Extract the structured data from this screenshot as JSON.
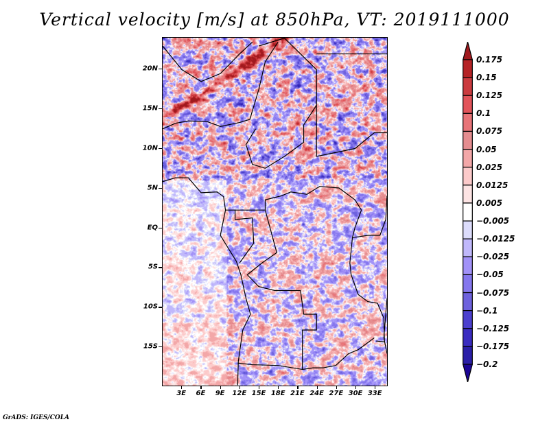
{
  "title": "Vertical velocity [m/s] at 850hPa, VT: 2019111000",
  "footer": "GrADS: IGES/COLA",
  "map": {
    "variable": "Vertical velocity",
    "units": "m/s",
    "level": "850hPa",
    "valid_time": "2019111000",
    "lon_range": [
      0,
      35
    ],
    "lat_range": [
      -20,
      24
    ],
    "y_axis_labels": [
      {
        "label": "20N",
        "lat": 20
      },
      {
        "label": "15N",
        "lat": 15
      },
      {
        "label": "10N",
        "lat": 10
      },
      {
        "label": "5N",
        "lat": 5
      },
      {
        "label": "EQ",
        "lat": 0
      },
      {
        "label": "5S",
        "lat": -5
      },
      {
        "label": "10S",
        "lat": -10
      },
      {
        "label": "15S",
        "lat": -15
      }
    ],
    "x_axis_labels": [
      {
        "label": "3E",
        "lon": 3
      },
      {
        "label": "6E",
        "lon": 6
      },
      {
        "label": "9E",
        "lon": 9
      },
      {
        "label": "12E",
        "lon": 12
      },
      {
        "label": "15E",
        "lon": 15
      },
      {
        "label": "18E",
        "lon": 18
      },
      {
        "label": "21E",
        "lon": 21
      },
      {
        "label": "24E",
        "lon": 24
      },
      {
        "label": "27E",
        "lon": 27
      },
      {
        "label": "30E",
        "lon": 30
      },
      {
        "label": "33E",
        "lon": 33
      }
    ]
  },
  "colorbar": {
    "labels": [
      "0.175",
      "0.15",
      "0.125",
      "0.1",
      "0.075",
      "0.05",
      "0.025",
      "0.0125",
      "0.005",
      "-0.005",
      "-0.0125",
      "-0.025",
      "-0.05",
      "-0.075",
      "-0.1",
      "-0.125",
      "-0.175",
      "-0.2"
    ],
    "colors": [
      "#a0191e",
      "#b52326",
      "#cb3b3f",
      "#e2545a",
      "#e87478",
      "#e58d90",
      "#f3a7a8",
      "#fccaca",
      "#fde4e4",
      "#ffffff",
      "#dcdcfb",
      "#c0b8fb",
      "#a292f8",
      "#8577ee",
      "#6e62dd",
      "#4c40cf",
      "#3a2cc0",
      "#2b1fa8",
      "#1c0596"
    ]
  }
}
